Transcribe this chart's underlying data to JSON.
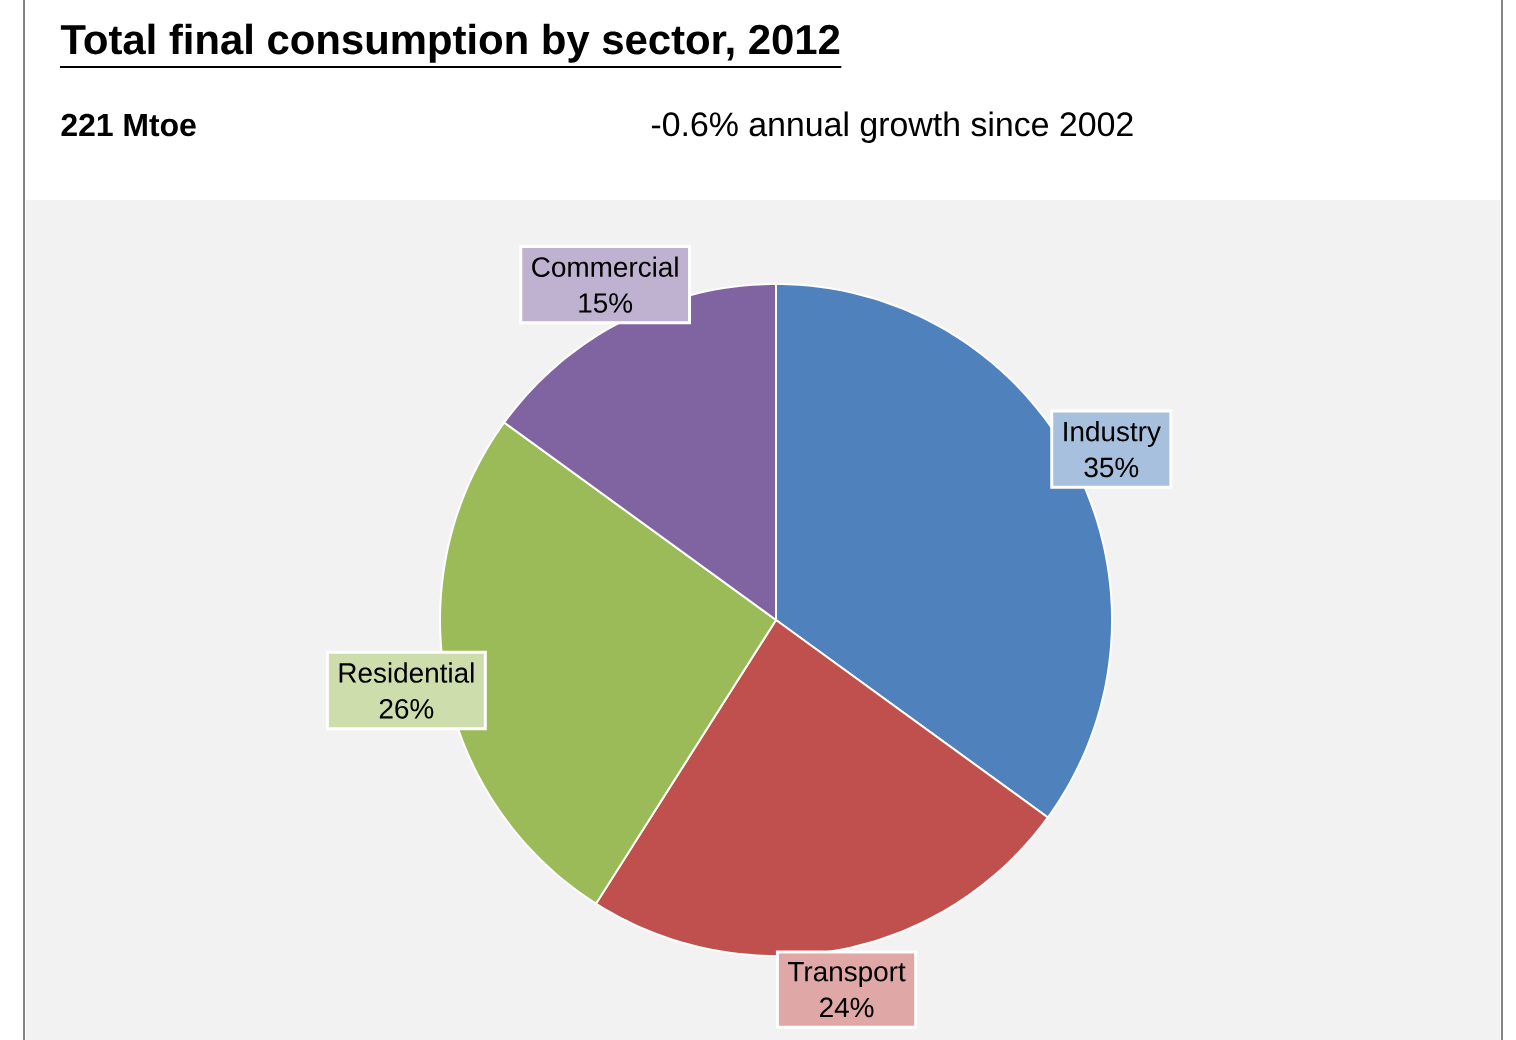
{
  "chart_data": {
    "type": "pie",
    "title": "Total final consumption by sector, 2012",
    "subtitle": "221 Mtoe",
    "annotations": [
      "-0.6% annual growth since 2002"
    ],
    "categories": [
      "Industry",
      "Transport",
      "Residential",
      "Commercial"
    ],
    "values": [
      35,
      24,
      26,
      15
    ],
    "value_labels": [
      "35%",
      "24%",
      "26%",
      "15%"
    ],
    "colors": [
      "#4f81bd",
      "#c0504d",
      "#9bbb59",
      "#8064a2"
    ]
  }
}
